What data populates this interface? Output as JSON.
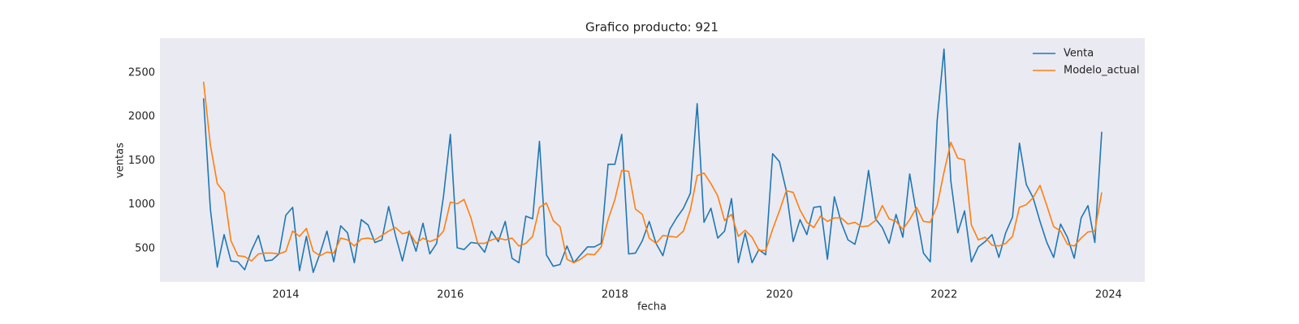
{
  "chart_data": {
    "type": "line",
    "title": "Grafico producto: 921",
    "x_label": "fecha",
    "y_label": "ventas",
    "x": [
      2013,
      2013.083,
      2013.167,
      2013.25,
      2013.333,
      2013.417,
      2013.5,
      2013.583,
      2013.667,
      2013.75,
      2013.833,
      2013.917,
      2014,
      2014.083,
      2014.167,
      2014.25,
      2014.333,
      2014.417,
      2014.5,
      2014.583,
      2014.667,
      2014.75,
      2014.833,
      2014.917,
      2015,
      2015.083,
      2015.167,
      2015.25,
      2015.333,
      2015.417,
      2015.5,
      2015.583,
      2015.667,
      2015.75,
      2015.833,
      2015.917,
      2016,
      2016.083,
      2016.167,
      2016.25,
      2016.333,
      2016.417,
      2016.5,
      2016.583,
      2016.667,
      2016.75,
      2016.833,
      2016.917,
      2017,
      2017.083,
      2017.167,
      2017.25,
      2017.333,
      2017.417,
      2017.5,
      2017.583,
      2017.667,
      2017.75,
      2017.833,
      2017.917,
      2018,
      2018.083,
      2018.167,
      2018.25,
      2018.333,
      2018.417,
      2018.5,
      2018.583,
      2018.667,
      2018.75,
      2018.833,
      2018.917,
      2019,
      2019.083,
      2019.167,
      2019.25,
      2019.333,
      2019.417,
      2019.5,
      2019.583,
      2019.667,
      2019.75,
      2019.833,
      2019.917,
      2020,
      2020.083,
      2020.167,
      2020.25,
      2020.333,
      2020.417,
      2020.5,
      2020.583,
      2020.667,
      2020.75,
      2020.833,
      2020.917,
      2021,
      2021.083,
      2021.167,
      2021.25,
      2021.333,
      2021.417,
      2021.5,
      2021.583,
      2021.667,
      2021.75,
      2021.833,
      2021.917,
      2022,
      2022.083,
      2022.167,
      2022.25,
      2022.333,
      2022.417,
      2022.5,
      2022.583,
      2022.667,
      2022.75,
      2022.833,
      2022.917,
      2023,
      2023.083,
      2023.167,
      2023.25,
      2023.333,
      2023.417,
      2023.5,
      2023.583,
      2023.667,
      2023.75,
      2023.833,
      2023.917
    ],
    "series": [
      {
        "name": "Venta",
        "color": "#1f77b4",
        "values": [
          2210,
          950,
          290,
          660,
          360,
          350,
          260,
          480,
          650,
          360,
          370,
          440,
          880,
          970,
          250,
          640,
          230,
          450,
          700,
          350,
          760,
          680,
          340,
          830,
          770,
          570,
          600,
          980,
          650,
          360,
          700,
          470,
          790,
          440,
          560,
          1100,
          1800,
          510,
          490,
          570,
          560,
          460,
          700,
          580,
          810,
          390,
          340,
          870,
          840,
          1720,
          430,
          300,
          320,
          530,
          340,
          430,
          520,
          520,
          560,
          1460,
          1460,
          1800,
          440,
          450,
          590,
          810,
          560,
          420,
          720,
          850,
          960,
          1130,
          2150,
          800,
          960,
          620,
          700,
          1070,
          340,
          680,
          340,
          490,
          430,
          1580,
          1490,
          1160,
          580,
          830,
          660,
          970,
          980,
          380,
          1090,
          800,
          600,
          550,
          840,
          1390,
          840,
          740,
          560,
          890,
          630,
          1350,
          890,
          450,
          350,
          1960,
          2770,
          1270,
          680,
          930,
          350,
          520,
          580,
          660,
          400,
          680,
          860,
          1700,
          1230,
          1080,
          810,
          570,
          400,
          780,
          630,
          390,
          850,
          990,
          570,
          1830
        ]
      },
      {
        "name": "Modelo_actual",
        "color": "#ff7f0e",
        "values": [
          2400,
          1680,
          1240,
          1140,
          590,
          420,
          410,
          360,
          440,
          450,
          450,
          440,
          470,
          700,
          640,
          730,
          470,
          420,
          460,
          450,
          620,
          600,
          530,
          610,
          620,
          600,
          650,
          700,
          740,
          670,
          690,
          560,
          620,
          580,
          610,
          700,
          1030,
          1010,
          1060,
          850,
          560,
          560,
          600,
          620,
          600,
          620,
          530,
          560,
          640,
          970,
          1020,
          820,
          750,
          380,
          340,
          380,
          440,
          430,
          520,
          830,
          1060,
          1390,
          1380,
          950,
          890,
          620,
          560,
          650,
          640,
          630,
          700,
          940,
          1330,
          1360,
          1240,
          1100,
          820,
          890,
          640,
          710,
          630,
          480,
          480,
          720,
          930,
          1160,
          1140,
          940,
          800,
          740,
          870,
          810,
          850,
          850,
          780,
          800,
          750,
          760,
          820,
          990,
          840,
          810,
          720,
          830,
          970,
          810,
          800,
          990,
          1370,
          1710,
          1530,
          1510,
          770,
          600,
          630,
          540,
          530,
          560,
          640,
          970,
          1000,
          1080,
          1220,
          990,
          750,
          700,
          550,
          530,
          620,
          690,
          700,
          1140
        ]
      }
    ],
    "xlim": [
      2012.47,
      2024.44
    ],
    "xticks": [
      2014,
      2016,
      2018,
      2020,
      2022,
      2024
    ],
    "ylim": [
      122,
      2896
    ],
    "yticks": [
      500,
      1000,
      1500,
      2000,
      2500
    ],
    "grid": false,
    "legend": "upper right"
  }
}
